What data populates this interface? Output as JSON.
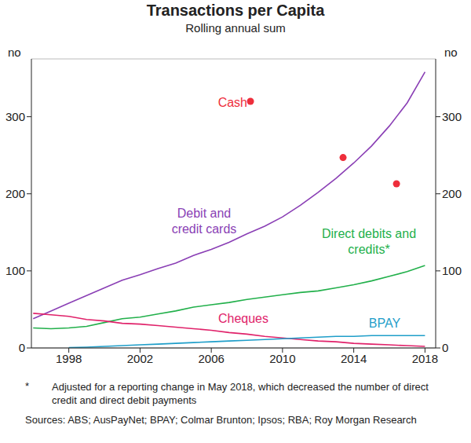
{
  "chart_data": {
    "type": "line",
    "title": "Transactions per Capita",
    "subtitle": "Rolling annual sum",
    "ylabel": "no",
    "x": [
      1996,
      1997,
      1998,
      1999,
      2000,
      2001,
      2002,
      2003,
      2004,
      2005,
      2006,
      2007,
      2008,
      2009,
      2010,
      2011,
      2012,
      2013,
      2014,
      2015,
      2016,
      2017,
      2018
    ],
    "series": [
      {
        "name": "Debit and credit cards",
        "color": "#8a3fb5",
        "values": [
          38,
          48,
          58,
          68,
          78,
          88,
          95,
          103,
          110,
          120,
          128,
          137,
          148,
          158,
          170,
          185,
          202,
          220,
          240,
          262,
          288,
          318,
          358
        ]
      },
      {
        "name": "Direct debits and credits*",
        "color": "#22b04b",
        "values": [
          26,
          25,
          26,
          28,
          33,
          38,
          40,
          44,
          48,
          53,
          56,
          59,
          63,
          66,
          69,
          72,
          74,
          78,
          82,
          87,
          93,
          99,
          107
        ]
      },
      {
        "name": "Cheques",
        "color": "#e0226a",
        "values": [
          45,
          43,
          41,
          37,
          35,
          32,
          31,
          29,
          27,
          25,
          23,
          20,
          18,
          15,
          13,
          11,
          9,
          8,
          6,
          5,
          4,
          3,
          2
        ]
      },
      {
        "name": "BPAY",
        "color": "#1f9ec9",
        "values": [
          null,
          null,
          0.5,
          1,
          2,
          3,
          4,
          5,
          6,
          7,
          8,
          9,
          10,
          11,
          12,
          13,
          14,
          15,
          15,
          16,
          16,
          16,
          16
        ]
      },
      {
        "name": "Cash",
        "type": "scatter",
        "marker": "circle",
        "color": "#ee2e3b",
        "x": [
          2008.2,
          2013.4,
          2016.4
        ],
        "values": [
          320,
          247,
          213
        ]
      }
    ],
    "xlim": [
      1995.9,
      2018.6
    ],
    "xticks": [
      1998,
      2002,
      2006,
      2010,
      2014,
      2018
    ],
    "ylim": [
      0,
      375
    ],
    "yticks": [
      0,
      100,
      200,
      300
    ],
    "grid": true,
    "footnote": {
      "marker": "*",
      "text": "Adjusted for a reporting change in May 2018, which decreased the number of direct credit and direct debit payments"
    },
    "source": "Sources: ABS; AusPayNet; BPAY; Colmar Brunton; Ipsos; RBA; Roy Morgan Research"
  }
}
